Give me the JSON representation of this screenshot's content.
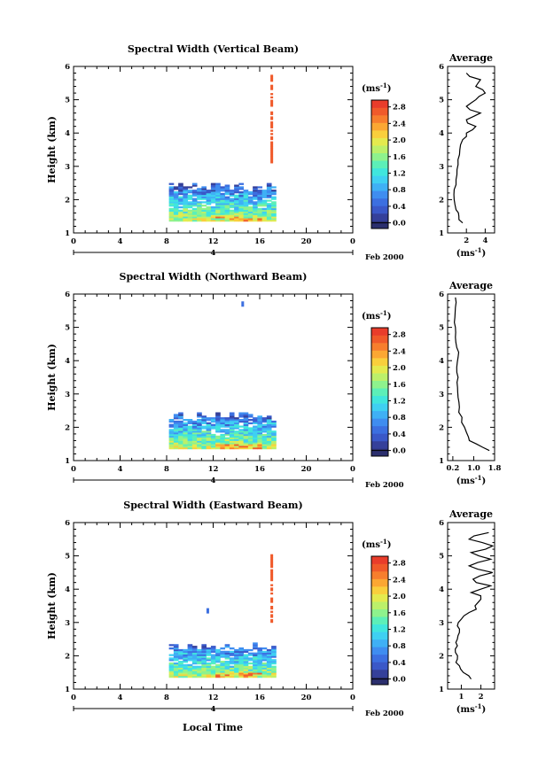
{
  "figure": {
    "xlabel": "Local Time",
    "date_suffix": "Feb 2000",
    "date_day": "4",
    "colorbar_unit_base": "(ms",
    "colorbar_unit_exp": "-1",
    "colorbar_unit_end": ")",
    "average_title": "Average"
  },
  "colorscale": [
    "#2b2f6e",
    "#35409a",
    "#3a58c8",
    "#3c6fe0",
    "#3f8df0",
    "#3fb0f5",
    "#3fd0f2",
    "#40e6dd",
    "#5cefb8",
    "#8ef28d",
    "#bcf06a",
    "#e4ea4e",
    "#f9cf3c",
    "#fba733",
    "#f77e2d",
    "#f05a2a",
    "#e93d2b"
  ],
  "chart_data": [
    {
      "type": "heatmap",
      "title": "Spectral Width (Vertical Beam)",
      "ylabel": "Height (km)",
      "xlim": [
        0,
        24
      ],
      "ylim": [
        1,
        6
      ],
      "xticks": [
        "0",
        "4",
        "8",
        "12",
        "16",
        "20",
        "0"
      ],
      "yticks": [
        "1",
        "2",
        "3",
        "4",
        "5",
        "6"
      ],
      "colorbar_ticks": [
        "0.0",
        "0.4",
        "0.8",
        "1.2",
        "1.6",
        "2.0",
        "2.4",
        "2.8"
      ],
      "colorbar_max": 3.0,
      "data_region": {
        "x": [
          8.2,
          17.4
        ],
        "y": [
          1.35,
          2.5
        ]
      },
      "spike": {
        "x": 17.0,
        "y": [
          3.1,
          5.7
        ],
        "value": 2.9
      },
      "average": {
        "title": "Average",
        "xlabel": "(ms-1)",
        "xlim": [
          0,
          5
        ],
        "xticks": [
          "2",
          "4"
        ],
        "xtick_values": [
          2,
          4
        ],
        "height": [
          1.3,
          1.5,
          1.7,
          2.0,
          2.3,
          2.6,
          2.9,
          3.2,
          3.5,
          3.8,
          4.0,
          4.2,
          4.4,
          4.6,
          4.8,
          5.0,
          5.2,
          5.4,
          5.6,
          5.8
        ],
        "value": [
          1.6,
          1.2,
          0.9,
          0.7,
          0.7,
          0.9,
          1.0,
          1.1,
          1.3,
          1.6,
          2.0,
          3.0,
          2.0,
          3.5,
          2.0,
          3.0,
          4.0,
          3.0,
          3.5,
          2.0
        ]
      }
    },
    {
      "type": "heatmap",
      "title": "Spectral Width (Northward Beam)",
      "ylabel": "Height (km)",
      "xlim": [
        0,
        24
      ],
      "ylim": [
        1,
        6
      ],
      "xticks": [
        "0",
        "4",
        "8",
        "12",
        "16",
        "20",
        "0"
      ],
      "yticks": [
        "1",
        "2",
        "3",
        "4",
        "5",
        "6"
      ],
      "colorbar_ticks": [
        "0.0",
        "0.4",
        "0.8",
        "1.2",
        "1.6",
        "2.0",
        "2.4",
        "2.8"
      ],
      "colorbar_max": 3.0,
      "data_region": {
        "x": [
          8.2,
          17.4
        ],
        "y": [
          1.35,
          2.45
        ]
      },
      "spot": {
        "x": 14.5,
        "y": 5.7,
        "value": 0.5
      },
      "average": {
        "title": "Average",
        "xlabel": "(ms-1)",
        "xlim": [
          0,
          1.8
        ],
        "xticks": [
          "0.2",
          "1.0",
          "1.8"
        ],
        "xtick_values": [
          0.2,
          1.0,
          1.8
        ],
        "height": [
          1.3,
          1.5,
          1.7,
          2.0,
          2.3,
          2.6,
          2.9,
          3.2,
          3.5,
          3.8,
          4.1,
          4.4,
          4.7,
          5.0,
          5.3,
          5.6,
          5.9
        ],
        "value": [
          1.6,
          1.1,
          0.8,
          0.65,
          0.55,
          0.45,
          0.4,
          0.38,
          0.4,
          0.35,
          0.4,
          0.35,
          0.3,
          0.3,
          0.28,
          0.3,
          0.3
        ]
      }
    },
    {
      "type": "heatmap",
      "title": "Spectral Width (Eastward Beam)",
      "ylabel": "Height (km)",
      "xlim": [
        0,
        24
      ],
      "ylim": [
        1,
        6
      ],
      "xticks": [
        "0",
        "4",
        "8",
        "12",
        "16",
        "20",
        "0"
      ],
      "yticks": [
        "1",
        "2",
        "3",
        "4",
        "5",
        "6"
      ],
      "colorbar_ticks": [
        "0.0",
        "0.4",
        "0.8",
        "1.2",
        "1.6",
        "2.0",
        "2.4",
        "2.8"
      ],
      "colorbar_max": 3.0,
      "data_region": {
        "x": [
          8.2,
          17.4
        ],
        "y": [
          1.35,
          2.4
        ]
      },
      "spike": {
        "x": 17.0,
        "y": [
          3.0,
          5.0
        ],
        "value": 2.9
      },
      "spot": {
        "x": 11.5,
        "y": 3.35,
        "value": 0.5
      },
      "average": {
        "title": "Average",
        "xlabel": "(ms-1)",
        "xlim": [
          0.3,
          2.7
        ],
        "xticks": [
          "1",
          "2"
        ],
        "xtick_values": [
          1,
          2
        ],
        "height": [
          1.3,
          1.5,
          1.7,
          1.9,
          2.1,
          2.3,
          2.5,
          2.7,
          2.9,
          3.1,
          3.3,
          3.5,
          3.7,
          3.9,
          4.1,
          4.3,
          4.5,
          4.7,
          4.9,
          5.1,
          5.3,
          5.5,
          5.7
        ],
        "value": [
          1.5,
          1.1,
          0.9,
          0.8,
          0.7,
          0.8,
          0.8,
          0.9,
          0.8,
          1.0,
          1.4,
          1.7,
          2.0,
          1.5,
          2.5,
          1.6,
          2.6,
          1.4,
          2.5,
          1.5,
          2.6,
          1.4,
          2.4
        ]
      }
    }
  ]
}
